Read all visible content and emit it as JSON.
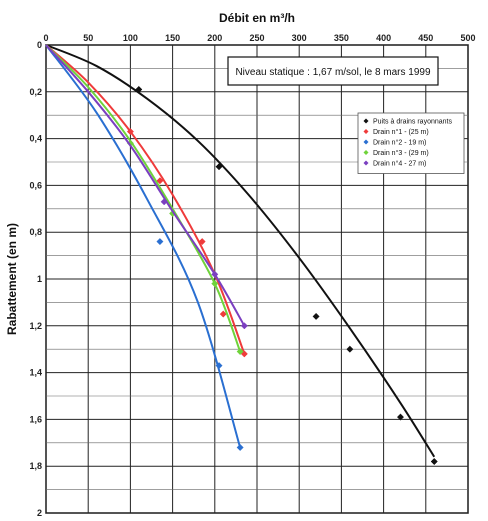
{
  "chart_data": {
    "type": "scatter",
    "title": "",
    "xlabel": "Débit en m³/h",
    "ylabel": "Rabattement (en m)",
    "xlim": [
      0,
      500
    ],
    "ylim": [
      0,
      2
    ],
    "y_inverted": true,
    "x_axis_position": "top",
    "x_ticks": [
      "0",
      "50",
      "100",
      "150",
      "200",
      "250",
      "300",
      "350",
      "400",
      "450",
      "500"
    ],
    "y_ticks": [
      "0",
      "0,2",
      "0,4",
      "0,6",
      "0,8",
      "1",
      "1,2",
      "1,4",
      "1,6",
      "1,8",
      "2"
    ],
    "x_tick_values": [
      0,
      50,
      100,
      150,
      200,
      250,
      300,
      350,
      400,
      450,
      500
    ],
    "y_tick_values": [
      0,
      0.2,
      0.4,
      0.6,
      0.8,
      1,
      1.2,
      1.4,
      1.6,
      1.8,
      2
    ],
    "grid": true,
    "annotation": "Niveau statique : 1,67 m/sol, le 8 mars 1999",
    "legend_position": "right",
    "series": [
      {
        "name": "Puits à drains rayonnants",
        "color": "#111111",
        "marker": "diamond",
        "points": [
          [
            0,
            0
          ],
          [
            110,
            0.19
          ],
          [
            205,
            0.52
          ],
          [
            320,
            1.16
          ],
          [
            360,
            1.3
          ],
          [
            420,
            1.59
          ],
          [
            460,
            1.78
          ]
        ],
        "curve": [
          [
            0,
            0
          ],
          [
            60,
            0.09
          ],
          [
            120,
            0.23
          ],
          [
            180,
            0.41
          ],
          [
            240,
            0.64
          ],
          [
            300,
            0.91
          ],
          [
            360,
            1.21
          ],
          [
            420,
            1.53
          ],
          [
            460,
            1.76
          ]
        ]
      },
      {
        "name": "Drain n°1 - (25 m)",
        "color": "#ef3b3b",
        "marker": "diamond",
        "points": [
          [
            0,
            0
          ],
          [
            100,
            0.37
          ],
          [
            135,
            0.58
          ],
          [
            185,
            0.84
          ],
          [
            210,
            1.15
          ],
          [
            235,
            1.32
          ]
        ],
        "curve": [
          [
            0,
            0
          ],
          [
            50,
            0.16
          ],
          [
            100,
            0.37
          ],
          [
            150,
            0.64
          ],
          [
            200,
            0.98
          ],
          [
            235,
            1.32
          ]
        ]
      },
      {
        "name": "Drain n°2 - 19 m)",
        "color": "#2a6fd1",
        "marker": "diamond",
        "points": [
          [
            0,
            0
          ],
          [
            135,
            0.84
          ],
          [
            205,
            1.37
          ],
          [
            230,
            1.72
          ]
        ],
        "curve": [
          [
            0,
            0
          ],
          [
            60,
            0.29
          ],
          [
            120,
            0.66
          ],
          [
            180,
            1.1
          ],
          [
            230,
            1.72
          ]
        ]
      },
      {
        "name": "Drain n°3 - (29 m)",
        "color": "#6fd33a",
        "marker": "diamond",
        "points": [
          [
            0,
            0
          ],
          [
            100,
            0.42
          ],
          [
            150,
            0.72
          ],
          [
            200,
            1.02
          ],
          [
            230,
            1.31
          ]
        ],
        "curve": [
          [
            0,
            0
          ],
          [
            50,
            0.18
          ],
          [
            100,
            0.41
          ],
          [
            150,
            0.7
          ],
          [
            200,
            1.02
          ],
          [
            230,
            1.31
          ]
        ]
      },
      {
        "name": "Drain n°4 - 27 m)",
        "color": "#7b3fc0",
        "marker": "diamond",
        "points": [
          [
            0,
            0
          ],
          [
            140,
            0.67
          ],
          [
            200,
            0.98
          ],
          [
            235,
            1.2
          ]
        ],
        "curve": [
          [
            0,
            0
          ],
          [
            50,
            0.2
          ],
          [
            100,
            0.43
          ],
          [
            150,
            0.71
          ],
          [
            200,
            0.98
          ],
          [
            235,
            1.2
          ]
        ]
      }
    ]
  }
}
